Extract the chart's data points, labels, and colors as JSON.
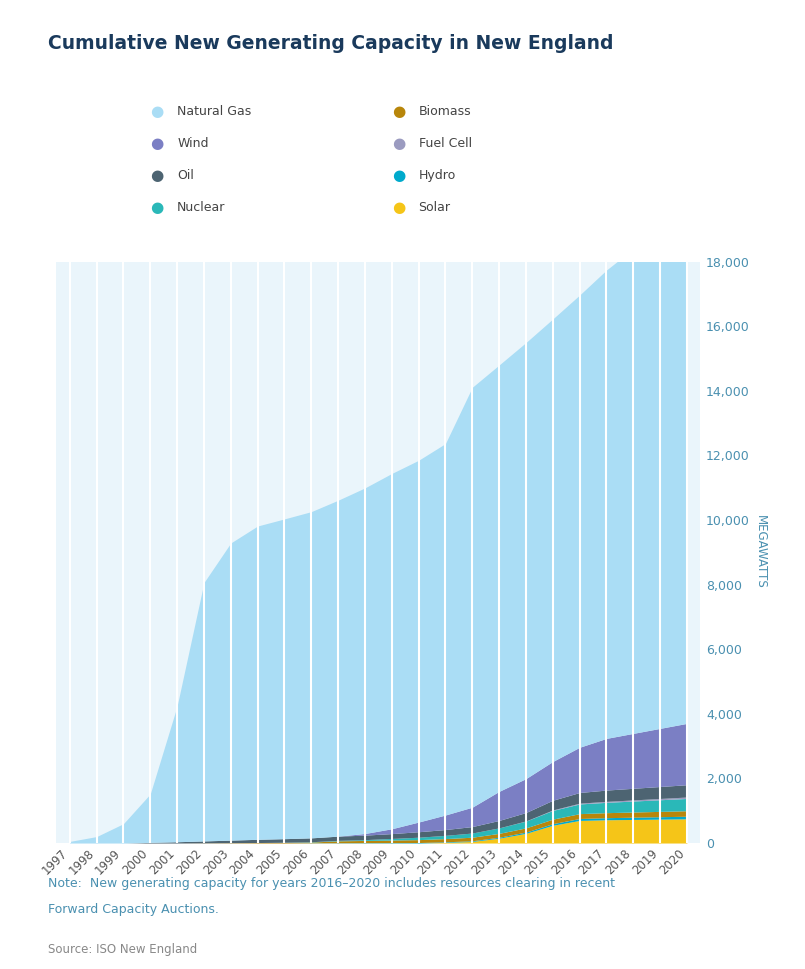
{
  "title": "Cumulative New Generating Capacity in New England",
  "ylabel": "MEGAWATTS",
  "note_line1": "Note:  New generating capacity for years 2016–2020 includes resources clearing in recent",
  "note_line2": "Forward Capacity Auctions.",
  "source": "Source: ISO New England",
  "years": [
    1997,
    1998,
    1999,
    2000,
    2001,
    2002,
    2003,
    2004,
    2005,
    2006,
    2007,
    2008,
    2009,
    2010,
    2011,
    2012,
    2013,
    2014,
    2015,
    2016,
    2017,
    2018,
    2019,
    2020
  ],
  "series": {
    "Solar": [
      0,
      0,
      0,
      0,
      0,
      0,
      0,
      0,
      0,
      0,
      0,
      0,
      0,
      0,
      20,
      50,
      150,
      300,
      550,
      700,
      720,
      730,
      740,
      750
    ],
    "Hydro": [
      0,
      0,
      0,
      0,
      0,
      0,
      0,
      0,
      0,
      5,
      8,
      10,
      12,
      15,
      18,
      20,
      30,
      40,
      50,
      60,
      65,
      70,
      75,
      80
    ],
    "Biomass": [
      0,
      0,
      0,
      0,
      0,
      5,
      10,
      15,
      20,
      25,
      60,
      70,
      80,
      90,
      100,
      110,
      120,
      130,
      140,
      150,
      155,
      160,
      165,
      170
    ],
    "Nuclear": [
      0,
      0,
      0,
      0,
      0,
      0,
      0,
      0,
      5,
      10,
      15,
      25,
      50,
      75,
      100,
      130,
      170,
      210,
      270,
      300,
      320,
      340,
      360,
      380
    ],
    "Fuel Cell": [
      0,
      0,
      0,
      0,
      0,
      0,
      0,
      0,
      0,
      0,
      0,
      0,
      0,
      0,
      0,
      0,
      0,
      5,
      15,
      25,
      30,
      35,
      40,
      45
    ],
    "Oil": [
      0,
      0,
      0,
      20,
      40,
      60,
      80,
      100,
      110,
      120,
      130,
      140,
      150,
      170,
      180,
      200,
      230,
      260,
      300,
      330,
      350,
      360,
      370,
      380
    ],
    "Wind": [
      0,
      0,
      0,
      0,
      0,
      0,
      0,
      0,
      0,
      0,
      0,
      50,
      150,
      300,
      450,
      600,
      900,
      1050,
      1200,
      1400,
      1600,
      1700,
      1800,
      1900
    ],
    "Natural Gas": [
      50,
      200,
      600,
      1500,
      4200,
      8000,
      9200,
      9700,
      9900,
      10100,
      10400,
      10700,
      11000,
      11200,
      11500,
      13000,
      13200,
      13500,
      13700,
      14000,
      14500,
      15000,
      16500,
      17500
    ]
  },
  "colors": {
    "Natural Gas": "#aaddf5",
    "Wind": "#7b7fc4",
    "Oil": "#4d6472",
    "Nuclear": "#2ab8b8",
    "Biomass": "#b8860b",
    "Fuel Cell": "#9b9bc0",
    "Hydro": "#00aacc",
    "Solar": "#f5c518"
  },
  "ylim": [
    0,
    18000
  ],
  "yticks": [
    0,
    2000,
    4000,
    6000,
    8000,
    10000,
    12000,
    14000,
    16000,
    18000
  ],
  "background_color": "#ffffff",
  "grid_color": "#ffffff",
  "plot_bg": "#eaf5fb",
  "note_color": "#4a90b0",
  "source_color": "#888888",
  "title_color": "#1a3a5c",
  "legend_col1": [
    "Natural Gas",
    "Wind",
    "Oil",
    "Nuclear"
  ],
  "legend_col2": [
    "Biomass",
    "Fuel Cell",
    "Hydro",
    "Solar"
  ]
}
